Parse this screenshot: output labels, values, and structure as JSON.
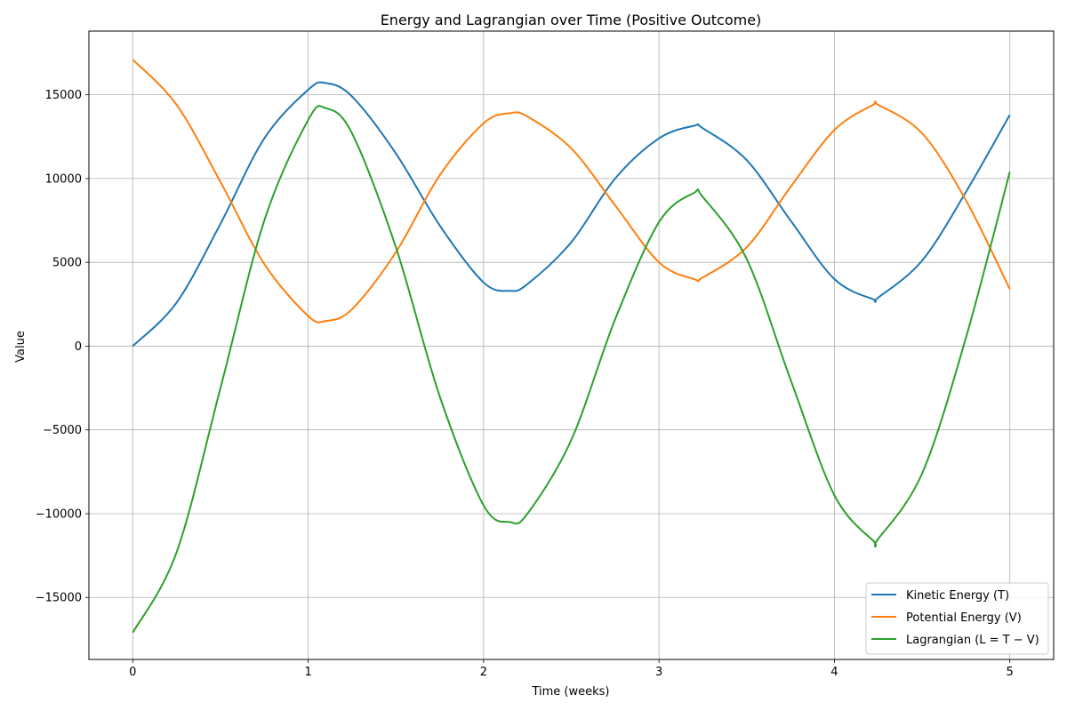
{
  "chart_data": {
    "type": "line",
    "title": "Energy and Lagrangian over Time (Positive Outcome)",
    "xlabel": "Time (weeks)",
    "ylabel": "Value",
    "xlim": [
      -0.25,
      5.25
    ],
    "ylim": [
      -18700,
      18800
    ],
    "x_ticks": [
      0,
      1,
      2,
      3,
      4,
      5
    ],
    "y_ticks": [
      -15000,
      -10000,
      -5000,
      0,
      5000,
      10000,
      15000
    ],
    "x_tick_labels": [
      "0",
      "1",
      "2",
      "3",
      "4",
      "5"
    ],
    "y_tick_labels": [
      "−15000",
      "−10000",
      "−5000",
      "0",
      "5000",
      "10000",
      "15000"
    ],
    "grid": true,
    "legend_position": "bottom-right",
    "x": [
      0,
      0.25,
      0.5,
      0.75,
      1.0,
      1.1,
      1.25,
      1.5,
      1.75,
      2.0,
      2.15,
      2.25,
      2.5,
      2.75,
      3.0,
      3.2,
      3.25,
      3.5,
      3.75,
      4.0,
      4.22,
      4.25,
      4.5,
      4.75,
      5.0
    ],
    "series": [
      {
        "name": "Kinetic Energy (T)",
        "color": "#1f77b4",
        "values": [
          0,
          2600,
          7300,
          12400,
          15300,
          15700,
          14900,
          11500,
          7200,
          3800,
          3300,
          3700,
          6200,
          10000,
          12400,
          13150,
          13000,
          11100,
          7500,
          4000,
          2800,
          2900,
          5100,
          9200,
          13800
        ]
      },
      {
        "name": "Potential Energy (V)",
        "color": "#ff7f0e",
        "values": [
          17100,
          14400,
          9800,
          4900,
          1800,
          1500,
          2200,
          5600,
          10200,
          13300,
          13900,
          13700,
          11800,
          8400,
          5000,
          4000,
          4100,
          5900,
          9500,
          12900,
          14400,
          14400,
          12700,
          8700,
          3400
        ]
      },
      {
        "name": "Lagrangian (L = T − V)",
        "color": "#2ca02c",
        "values": [
          -17100,
          -12300,
          -2500,
          7500,
          13500,
          14200,
          12700,
          5900,
          -3000,
          -9500,
          -10500,
          -10000,
          -5600,
          1600,
          7400,
          9150,
          8900,
          5200,
          -2000,
          -8900,
          -11600,
          -11500,
          -7600,
          500,
          10400
        ]
      }
    ]
  }
}
